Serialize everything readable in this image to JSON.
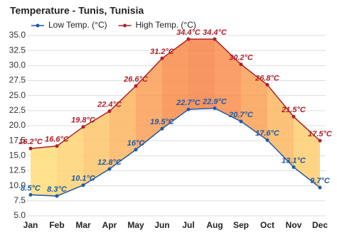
{
  "chart_data": {
    "type": "line",
    "title": "Temperature - Tunis, Tunisia",
    "categories": [
      "Jan",
      "Feb",
      "Mar",
      "Apr",
      "May",
      "Jun",
      "Jul",
      "Aug",
      "Sep",
      "Oct",
      "Nov",
      "Dec"
    ],
    "series": [
      {
        "name": "Low Temp. (°C)",
        "color": "#1f5aa6",
        "values": [
          8.5,
          8.3,
          10.1,
          12.8,
          16,
          19.5,
          22.7,
          22.9,
          20.7,
          17.6,
          13.1,
          9.7
        ],
        "value_labels": [
          "8.5°C",
          "8.3°C",
          "10.1°C",
          "12.8°C",
          "16°C",
          "19.5°C",
          "22.7°C",
          "22.9°C",
          "20.7°C",
          "17.6°C",
          "13.1°C",
          "9.7°C"
        ]
      },
      {
        "name": "High Temp. (°C)",
        "color": "#b0202a",
        "values": [
          16.2,
          16.6,
          19.8,
          22.4,
          26.6,
          31.2,
          34.4,
          34.4,
          30.2,
          26.8,
          21.5,
          17.5
        ],
        "value_labels": [
          "16.2°C",
          "16.6°C",
          "19.8°C",
          "22.4°C",
          "26.6°C",
          "31.2°C",
          "34.4°C",
          "34.4°C",
          "30.2°C",
          "26.8°C",
          "21.5°C",
          "17.5°C"
        ]
      }
    ],
    "ylim": [
      5,
      35
    ],
    "yticks": [
      {
        "value": 5,
        "label": "5.0"
      },
      7.5,
      {
        "value": 10,
        "label": "10.0"
      },
      12.5,
      {
        "value": 15,
        "label": "15.0"
      },
      17.5,
      {
        "value": 20,
        "label": "20.0"
      },
      22.5,
      {
        "value": 25,
        "label": "25.0"
      },
      27.5,
      {
        "value": 30,
        "label": "30.0"
      },
      32.5,
      {
        "value": 35,
        "label": "35.0"
      }
    ],
    "grid": true
  }
}
